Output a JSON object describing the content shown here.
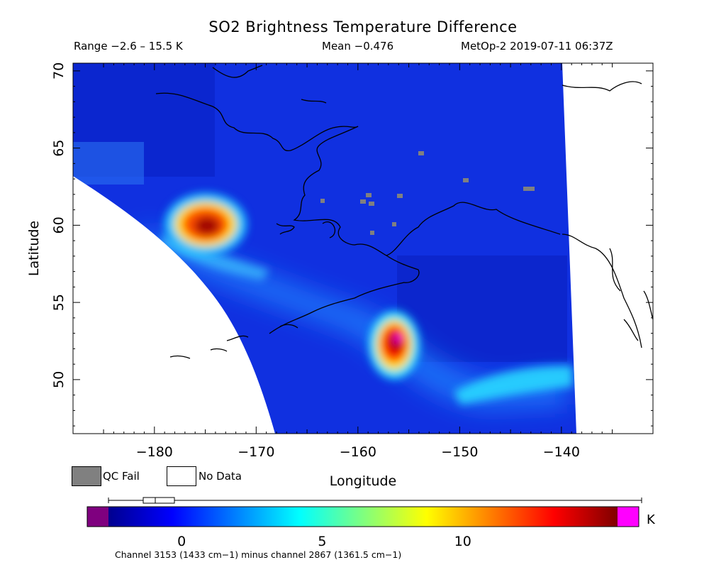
{
  "header": {
    "title": "SO2 Brightness Temperature Difference",
    "range": "Range −2.6 – 15.5 K",
    "mean": "Mean −0.476",
    "satellite_time": "MetOp-2 2019-07-11 06:37Z"
  },
  "map": {
    "xlabel": "Longitude",
    "ylabel": "Latitude",
    "lon_ticks": [
      -180,
      -170,
      -160,
      -150,
      -140
    ],
    "lon_tick_labels": [
      "−180",
      "−170",
      "−160",
      "−150",
      "−140"
    ],
    "lat_ticks": [
      50,
      55,
      60,
      65,
      70
    ],
    "lat_tick_labels": [
      "50",
      "55",
      "60",
      "65",
      "70"
    ],
    "lon_range": [
      -188,
      -131
    ],
    "lat_range": [
      46.5,
      70.5
    ],
    "plumes": [
      {
        "lon": -175.5,
        "lat": 60.5,
        "peak": 13
      },
      {
        "lon": -156,
        "lat": 52.7,
        "peak": 15.5
      }
    ]
  },
  "legend": {
    "qc_fail_label": "QC Fail",
    "qc_fail_color": "#808080",
    "no_data_label": "No Data",
    "no_data_color": "#ffffff"
  },
  "colorbar": {
    "unit": "K",
    "ticks": [
      0,
      5,
      10
    ],
    "tick_labels": [
      "0",
      "5",
      "10"
    ],
    "range": [
      -2.6,
      15.5
    ],
    "low_color": "#7f007f",
    "high_color": "#ff00ff",
    "caption": "Channel 3153 (1433 cm−1) minus channel 2867 (1361.5 cm−1)"
  }
}
